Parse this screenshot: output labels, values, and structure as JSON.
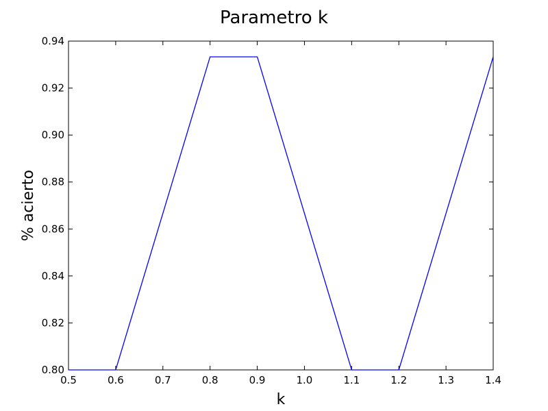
{
  "chart_data": {
    "type": "line",
    "title": "Parametro k",
    "xlabel": "k",
    "ylabel": "% acierto",
    "xlim": [
      0.5,
      1.4
    ],
    "ylim": [
      0.8,
      0.94
    ],
    "x_ticks": [
      "0.5",
      "0.6",
      "0.7",
      "0.8",
      "0.9",
      "1.0",
      "1.1",
      "1.2",
      "1.3",
      "1.4"
    ],
    "y_ticks": [
      "0.80",
      "0.82",
      "0.84",
      "0.86",
      "0.88",
      "0.90",
      "0.92",
      "0.94"
    ],
    "grid": false,
    "series": [
      {
        "color": "#0000ff",
        "x": [
          0.5,
          0.6,
          0.8,
          0.9,
          1.1,
          1.2,
          1.4
        ],
        "y": [
          0.8,
          0.8,
          0.9333,
          0.9333,
          0.8,
          0.8,
          0.9333
        ]
      }
    ]
  }
}
